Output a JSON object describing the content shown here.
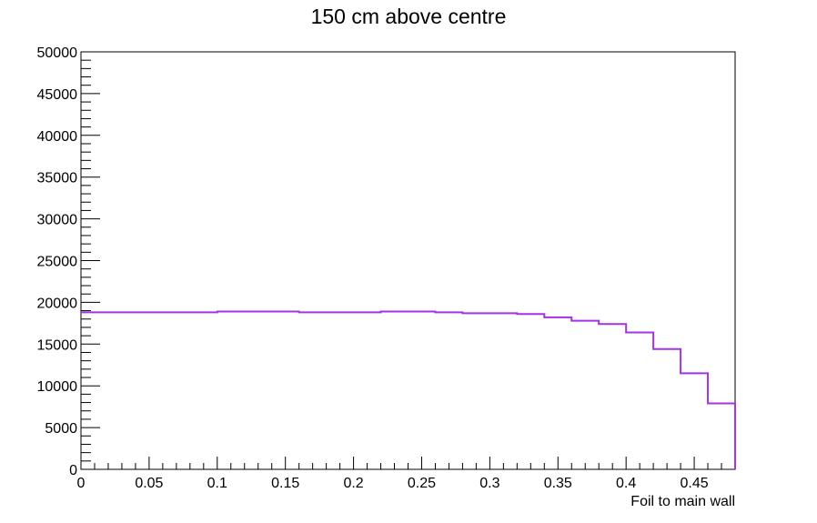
{
  "chart_data": {
    "type": "histogram",
    "title": "150 cm above centre",
    "xlabel": "Foil to main wall",
    "ylabel": "",
    "xlim": [
      0,
      0.48
    ],
    "ylim": [
      0,
      50000
    ],
    "x_ticks": [
      "0",
      "0.05",
      "0.1",
      "0.15",
      "0.2",
      "0.25",
      "0.3",
      "0.35",
      "0.4",
      "0.45"
    ],
    "x_tick_values": [
      0,
      0.05,
      0.1,
      0.15,
      0.2,
      0.25,
      0.3,
      0.35,
      0.4,
      0.45
    ],
    "y_ticks": [
      "0",
      "5000",
      "10000",
      "15000",
      "20000",
      "25000",
      "30000",
      "35000",
      "40000",
      "45000",
      "50000"
    ],
    "y_tick_values": [
      0,
      5000,
      10000,
      15000,
      20000,
      25000,
      30000,
      35000,
      40000,
      45000,
      50000
    ],
    "bin_edges": [
      0,
      0.02,
      0.04,
      0.06,
      0.08,
      0.1,
      0.12,
      0.14,
      0.16,
      0.18,
      0.2,
      0.22,
      0.24,
      0.26,
      0.28,
      0.3,
      0.32,
      0.34,
      0.36,
      0.38,
      0.4,
      0.42,
      0.44,
      0.46,
      0.48
    ],
    "values": [
      18800,
      18800,
      18800,
      18800,
      18800,
      18900,
      18900,
      18900,
      18800,
      18800,
      18800,
      18900,
      18900,
      18800,
      18700,
      18700,
      18600,
      18200,
      17800,
      17400,
      16400,
      14400,
      11500,
      7900
    ],
    "line_color": "#a233e6",
    "grid": false,
    "legend": "none"
  }
}
